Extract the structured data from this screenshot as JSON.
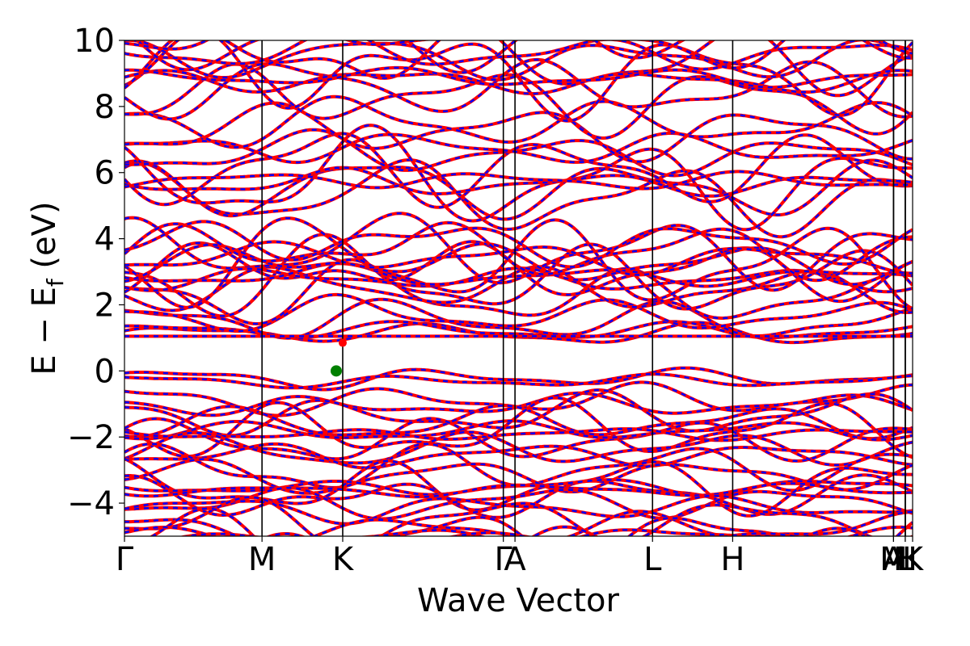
{
  "chart_data": {
    "type": "line",
    "xlabel": "Wave Vector",
    "ylabel": "E − E",
    "ylabel_sub": "f",
    "ylabel_unit": " (eV)",
    "ylim": [
      -5,
      10
    ],
    "y_ticks": [
      {
        "value": -4,
        "label": "−4"
      },
      {
        "value": -2,
        "label": "−2"
      },
      {
        "value": 0,
        "label": "0"
      },
      {
        "value": 2,
        "label": "2"
      },
      {
        "value": 4,
        "label": "4"
      },
      {
        "value": 6,
        "label": "6"
      },
      {
        "value": 8,
        "label": "8"
      },
      {
        "value": 10,
        "label": "10"
      }
    ],
    "grid": false,
    "kpath": [
      {
        "label": "Γ",
        "x": 0.0
      },
      {
        "label": "M",
        "x": 0.1745
      },
      {
        "label": "K",
        "x": 0.2769
      },
      {
        "label": "Γ",
        "x": 0.4807
      },
      {
        "label": "A",
        "x": 0.4955
      },
      {
        "label": "L",
        "x": 0.67
      },
      {
        "label": "H",
        "x": 0.7717
      },
      {
        "label": "A",
        "x": 0.9758
      },
      {
        "label": "M",
        "x": 0.9758
      },
      {
        "label": "L",
        "x": 0.9907
      },
      {
        "label": "H",
        "x": 0.9907
      },
      {
        "label": "K",
        "x": 1.0
      }
    ],
    "band_gap": {
      "vbm": {
        "k": 0.2769,
        "E": 0.0
      },
      "cbm": {
        "k": 0.2687,
        "E": 0.85
      },
      "marker_color": "#008000"
    },
    "flat_band_energy": 1.05,
    "series": [
      {
        "style": "solid",
        "color": "#ff0000"
      },
      {
        "style": "dashed",
        "color": "#0000ff"
      }
    ],
    "conduction_band_edges": [
      0.85,
      1.05,
      1.6,
      1.9,
      2.2,
      2.5,
      2.8,
      3.0,
      4.4,
      4.7,
      5.4,
      6.1,
      6.6,
      7.4,
      8.0,
      8.5,
      9.0,
      9.3
    ],
    "valence_band_edges": [
      0.0,
      -0.5,
      -0.8,
      -1.1,
      -1.6,
      -2.0,
      -2.4,
      -2.8,
      -3.3,
      -3.6,
      -4.0,
      -4.4,
      -4.8
    ]
  }
}
